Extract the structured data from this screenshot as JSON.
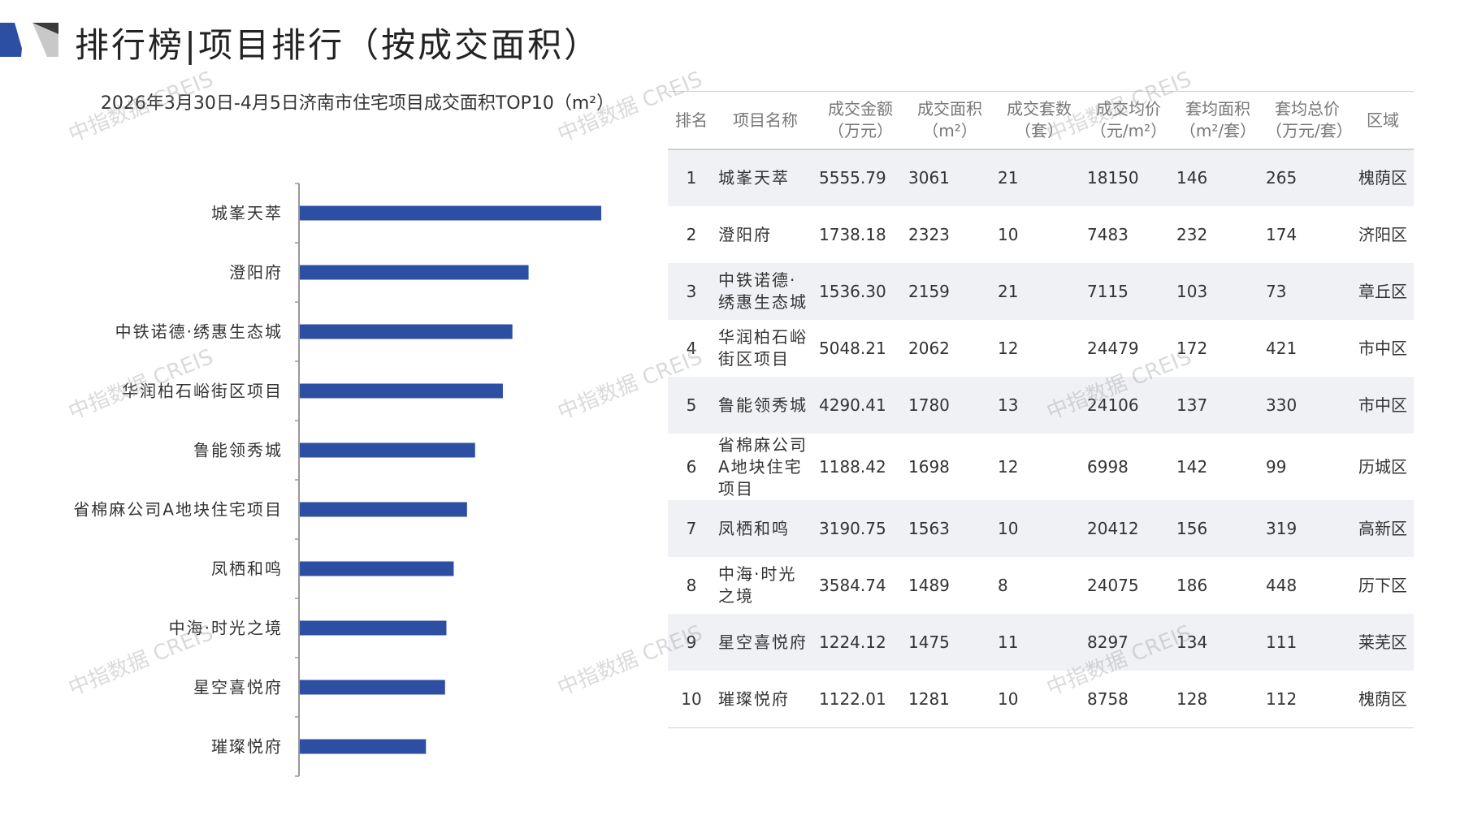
{
  "header": {
    "title": "排行榜|项目排行（按成交面积）"
  },
  "chart_data": {
    "type": "bar",
    "orientation": "horizontal",
    "title": "2026年3月30日-4月5日济南市住宅项目成交面积TOP10（m²）",
    "categories": [
      "城峯天萃",
      "澄阳府",
      "中铁诺德·绣惠生态城",
      "华润柏石峪街区项目",
      "鲁能领秀城",
      "省棉麻公司A地块住宅项目",
      "凤栖和鸣",
      "中海·时光之境",
      "星空喜悦府",
      "璀璨悦府"
    ],
    "values": [
      3061,
      2323,
      2159,
      2062,
      1780,
      1698,
      1563,
      1489,
      1475,
      1281
    ],
    "xlim": [
      0,
      3300
    ],
    "bar_color": "#2d4fa3",
    "legend": "none",
    "grid": false
  },
  "table": {
    "headers": [
      "排名",
      "项目名称",
      "成交金额\n（万元）",
      "成交面积\n（m²）",
      "成交套数\n（套）",
      "成交均价\n（元/m²）",
      "套均面积\n（m²/套）",
      "套均总价\n（万元/套）",
      "区域"
    ],
    "rows": [
      [
        "1",
        "城峯天萃",
        "5555.79",
        "3061",
        "21",
        "18150",
        "146",
        "265",
        "槐荫区"
      ],
      [
        "2",
        "澄阳府",
        "1738.18",
        "2323",
        "10",
        "7483",
        "232",
        "174",
        "济阳区"
      ],
      [
        "3",
        "中铁诺德·绣惠生态城",
        "1536.30",
        "2159",
        "21",
        "7115",
        "103",
        "73",
        "章丘区"
      ],
      [
        "4",
        "华润柏石峪街区项目",
        "5048.21",
        "2062",
        "12",
        "24479",
        "172",
        "421",
        "市中区"
      ],
      [
        "5",
        "鲁能领秀城",
        "4290.41",
        "1780",
        "13",
        "24106",
        "137",
        "330",
        "市中区"
      ],
      [
        "6",
        "省棉麻公司A地块住宅项目",
        "1188.42",
        "1698",
        "12",
        "6998",
        "142",
        "99",
        "历城区"
      ],
      [
        "7",
        "凤栖和鸣",
        "3190.75",
        "1563",
        "10",
        "20412",
        "156",
        "319",
        "高新区"
      ],
      [
        "8",
        "中海·时光之境",
        "3584.74",
        "1489",
        "8",
        "24075",
        "186",
        "448",
        "历下区"
      ],
      [
        "9",
        "星空喜悦府",
        "1224.12",
        "1475",
        "11",
        "8297",
        "134",
        "111",
        "莱芜区"
      ],
      [
        "10",
        "璀璨悦府",
        "1122.01",
        "1281",
        "10",
        "8758",
        "128",
        "112",
        "槐荫区"
      ]
    ]
  },
  "watermark": "中指数据 CREIS",
  "colors": {
    "accent": "#2d4fa3",
    "logo_gray": "#c8c8c8",
    "row_stripe": "#f0f1f4"
  }
}
